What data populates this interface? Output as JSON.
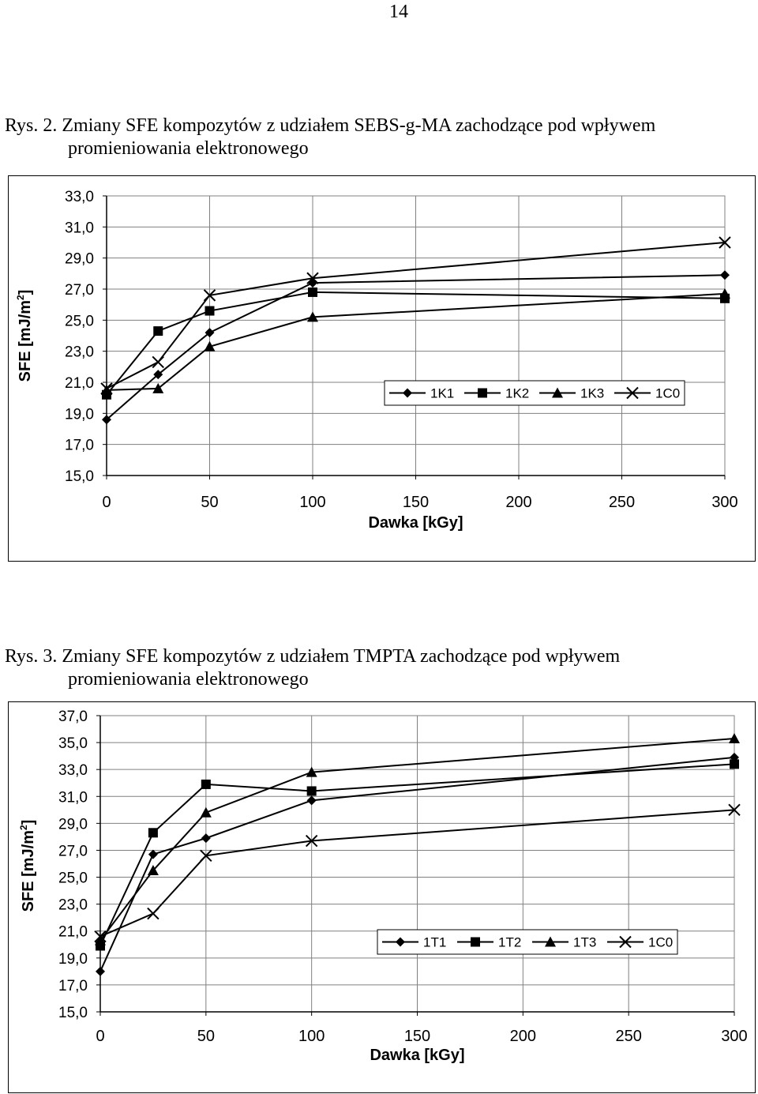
{
  "page": {
    "number": "14"
  },
  "captions": {
    "fig2": {
      "line1": "Rys. 2. Zmiany SFE kompozytów z udziałem SEBS-g-MA zachodzące pod wpływem",
      "line2": "promieniowania elektronowego"
    },
    "fig3": {
      "line1": "Rys. 3. Zmiany SFE kompozytów z udziałem TMPTA zachodzące pod wpływem",
      "line2": "promieniowania elektronowego"
    }
  },
  "chart_data": [
    {
      "type": "line",
      "title": "",
      "xlabel": "Dawka [kGy]",
      "ylabel_main": "SFE [mJ/m",
      "ylabel_sup": "2",
      "ylabel_end": "]",
      "xlim": [
        0,
        300
      ],
      "ylim": [
        15,
        33
      ],
      "xticks": [
        "0",
        "50",
        "100",
        "150",
        "200",
        "250",
        "300"
      ],
      "xtick_values": [
        0,
        50,
        100,
        150,
        200,
        250,
        300
      ],
      "yticks": [
        "15,0",
        "17,0",
        "19,0",
        "21,0",
        "23,0",
        "25,0",
        "27,0",
        "29,0",
        "31,0",
        "33,0"
      ],
      "ytick_values": [
        15,
        17,
        19,
        21,
        23,
        25,
        27,
        29,
        31,
        33
      ],
      "grid": true,
      "legend_position": "right, just below 21,0",
      "series": [
        {
          "name": "1K1",
          "marker": "diamond",
          "x": [
            0,
            25,
            50,
            100,
            300
          ],
          "y": [
            18.6,
            21.5,
            24.2,
            27.4,
            27.9
          ]
        },
        {
          "name": "1K2",
          "marker": "square",
          "x": [
            0,
            25,
            50,
            100,
            300
          ],
          "y": [
            20.2,
            24.3,
            25.6,
            26.8,
            26.4
          ]
        },
        {
          "name": "1K3",
          "marker": "triangle",
          "x": [
            0,
            25,
            50,
            100,
            300
          ],
          "y": [
            20.5,
            20.6,
            23.3,
            25.2,
            26.7
          ]
        },
        {
          "name": "1C0",
          "marker": "x",
          "x": [
            0,
            25,
            50,
            100,
            300
          ],
          "y": [
            20.6,
            22.3,
            26.6,
            27.7,
            30.0
          ]
        }
      ]
    },
    {
      "type": "line",
      "title": "",
      "xlabel": "Dawka [kGy]",
      "ylabel_main": "SFE [mJ/m",
      "ylabel_sup": "2",
      "ylabel_end": "]",
      "xlim": [
        0,
        300
      ],
      "ylim": [
        15,
        37
      ],
      "xticks": [
        "0",
        "50",
        "100",
        "150",
        "200",
        "250",
        "300"
      ],
      "xtick_values": [
        0,
        50,
        100,
        150,
        200,
        250,
        300
      ],
      "yticks": [
        "15,0",
        "17,0",
        "19,0",
        "21,0",
        "23,0",
        "25,0",
        "27,0",
        "29,0",
        "31,0",
        "33,0",
        "35,0",
        "37,0"
      ],
      "ytick_values": [
        15,
        17,
        19,
        21,
        23,
        25,
        27,
        29,
        31,
        33,
        35,
        37
      ],
      "grid": true,
      "legend_position": "bottom-right",
      "series": [
        {
          "name": "1T1",
          "marker": "diamond",
          "x": [
            0,
            25,
            50,
            100,
            300
          ],
          "y": [
            18.0,
            26.7,
            27.9,
            30.7,
            33.9
          ]
        },
        {
          "name": "1T2",
          "marker": "square",
          "x": [
            0,
            25,
            50,
            100,
            300
          ],
          "y": [
            19.9,
            28.3,
            31.9,
            31.4,
            33.4
          ]
        },
        {
          "name": "1T3",
          "marker": "triangle",
          "x": [
            0,
            25,
            50,
            100,
            300
          ],
          "y": [
            20.3,
            25.5,
            29.8,
            32.8,
            35.3
          ]
        },
        {
          "name": "1C0",
          "marker": "x",
          "x": [
            0,
            25,
            50,
            100,
            300
          ],
          "y": [
            20.6,
            22.3,
            26.6,
            27.7,
            30.0
          ]
        }
      ]
    }
  ]
}
